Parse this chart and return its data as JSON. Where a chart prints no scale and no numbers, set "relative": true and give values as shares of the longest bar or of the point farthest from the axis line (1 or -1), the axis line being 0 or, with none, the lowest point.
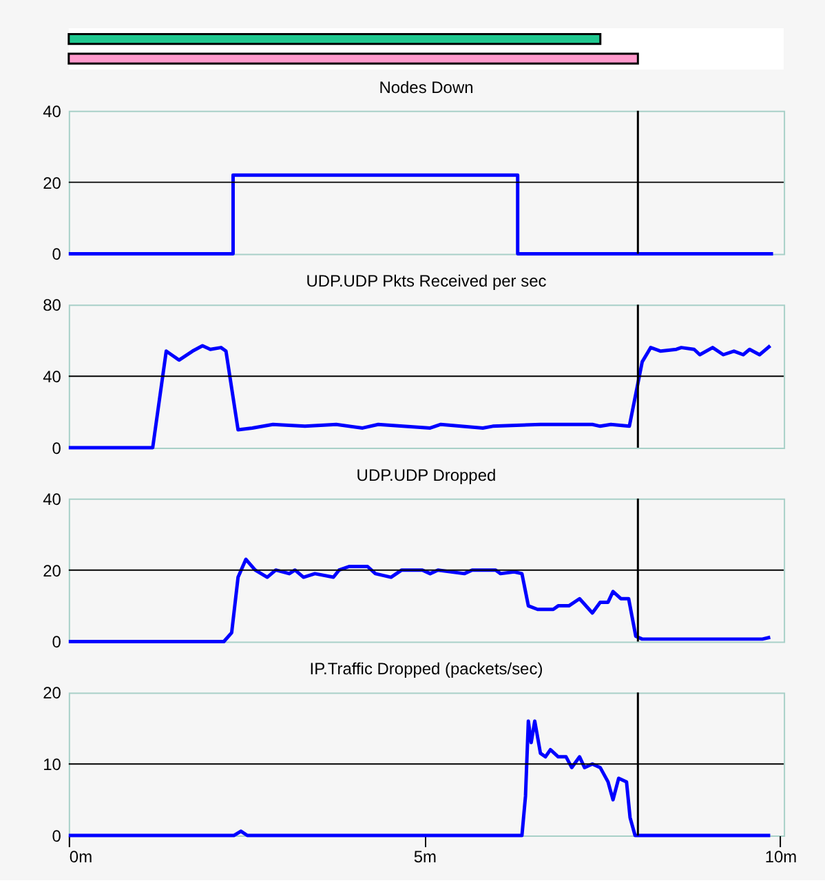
{
  "chart_data": [
    {
      "type": "bar",
      "orientation": "horizontal",
      "relative": true,
      "categories": [
        null,
        null
      ],
      "values": [
        0.934,
        1
      ],
      "colors": [
        "#20c890",
        "#ff99cc"
      ],
      "legend": false
    },
    {
      "type": "line",
      "title": "Nodes Down",
      "x": [
        0,
        2.31,
        2.31,
        6.31,
        6.31,
        9.9
      ],
      "series": [
        {
          "color": "#0000ff",
          "values": [
            0,
            0,
            22,
            22,
            0,
            0
          ]
        }
      ],
      "xlim": [
        0,
        10.05
      ],
      "ylim": [
        0,
        40
      ],
      "yticks": [
        0,
        20,
        40
      ],
      "tick_labels": "y",
      "grid": false,
      "legend": false,
      "marker": "none",
      "line_style": "solid",
      "ref_lines": [
        {
          "axis": "y",
          "value": 20
        },
        {
          "axis": "x",
          "value": 8.0
        }
      ]
    },
    {
      "type": "line",
      "title": "UDP.UDP Pkts Received per sec",
      "x": [
        0,
        1.18,
        1.37,
        1.55,
        1.74,
        1.88,
        1.99,
        2.14,
        2.21,
        2.38,
        2.58,
        2.87,
        3.32,
        3.76,
        4.13,
        4.35,
        5.08,
        5.23,
        5.82,
        5.96,
        6.63,
        7.36,
        7.47,
        7.62,
        7.88,
        8.06,
        8.18,
        8.32,
        8.54,
        8.61,
        8.79,
        8.87,
        9.05,
        9.2,
        9.35,
        9.48,
        9.57,
        9.71,
        9.86
      ],
      "series": [
        {
          "color": "#0000ff",
          "values": [
            0,
            0,
            54,
            49,
            54,
            57,
            55,
            56,
            54,
            10,
            11,
            13,
            12,
            13,
            11,
            13,
            11,
            13,
            11,
            12,
            13,
            13,
            12,
            13,
            12,
            48,
            56,
            54,
            55,
            56,
            55,
            52,
            56,
            52,
            54,
            52,
            55,
            52,
            57
          ]
        }
      ],
      "xlim": [
        0,
        10.05
      ],
      "ylim": [
        0,
        80
      ],
      "yticks": [
        0,
        40,
        80
      ],
      "tick_labels": "y",
      "grid": false,
      "legend": false,
      "marker": "none",
      "line_style": "solid",
      "ref_lines": [
        {
          "axis": "y",
          "value": 40
        },
        {
          "axis": "x",
          "value": 8.0
        }
      ]
    },
    {
      "type": "line",
      "title": "UDP.UDP Dropped",
      "x": [
        0,
        2.18,
        2.29,
        2.38,
        2.49,
        2.62,
        2.79,
        2.91,
        3.1,
        3.18,
        3.3,
        3.46,
        3.72,
        3.8,
        3.94,
        4.2,
        4.31,
        4.53,
        4.68,
        4.97,
        5.08,
        5.19,
        5.56,
        5.67,
        6.0,
        6.07,
        6.26,
        6.37,
        6.46,
        6.59,
        6.81,
        6.88,
        7.03,
        7.18,
        7.36,
        7.47,
        7.58,
        7.65,
        7.76,
        7.87,
        7.97,
        8.06,
        9.75,
        9.86
      ],
      "series": [
        {
          "color": "#0000ff",
          "values": [
            0,
            0,
            2.5,
            18,
            23,
            20,
            18,
            20,
            19,
            20,
            18,
            19,
            18,
            20,
            21,
            21,
            19,
            18,
            20,
            20,
            19,
            20,
            19,
            20,
            20,
            19,
            19.5,
            19,
            10,
            9,
            9,
            10,
            10,
            12,
            8,
            11,
            11,
            14,
            12,
            12,
            1.5,
            0.7,
            0.7,
            1.2
          ]
        }
      ],
      "xlim": [
        0,
        10.05
      ],
      "ylim": [
        0,
        40
      ],
      "yticks": [
        0,
        20,
        40
      ],
      "tick_labels": "y",
      "grid": false,
      "legend": false,
      "marker": "none",
      "line_style": "solid",
      "ref_lines": [
        {
          "axis": "y",
          "value": 20
        },
        {
          "axis": "x",
          "value": 8.0
        }
      ]
    },
    {
      "type": "line",
      "title": "IP.Traffic Dropped (packets/sec)",
      "x": [
        0,
        2.32,
        2.42,
        2.51,
        6.37,
        6.42,
        6.46,
        6.5,
        6.55,
        6.63,
        6.7,
        6.77,
        6.88,
        6.99,
        7.07,
        7.18,
        7.25,
        7.36,
        7.47,
        7.58,
        7.65,
        7.73,
        7.84,
        7.89,
        7.96,
        9.86
      ],
      "series": [
        {
          "color": "#0000ff",
          "values": [
            0,
            0,
            0.6,
            0,
            0,
            5.5,
            16,
            13,
            16,
            11.5,
            11,
            12,
            11,
            11,
            9.5,
            11,
            9.5,
            10,
            9.5,
            7.5,
            5,
            8,
            7.5,
            2.5,
            0,
            0
          ]
        }
      ],
      "xlim": [
        0,
        10.05
      ],
      "xticks": [
        {
          "value": 0,
          "label": "0m"
        },
        {
          "value": 5,
          "label": "5m"
        },
        {
          "value": 10,
          "label": "10m"
        }
      ],
      "ylim": [
        0,
        20
      ],
      "yticks": [
        0,
        10,
        20
      ],
      "grid": false,
      "legend": false,
      "marker": "none",
      "line_style": "solid",
      "ref_lines": [
        {
          "axis": "y",
          "value": 10
        },
        {
          "axis": "x",
          "value": 8.0
        }
      ]
    }
  ]
}
